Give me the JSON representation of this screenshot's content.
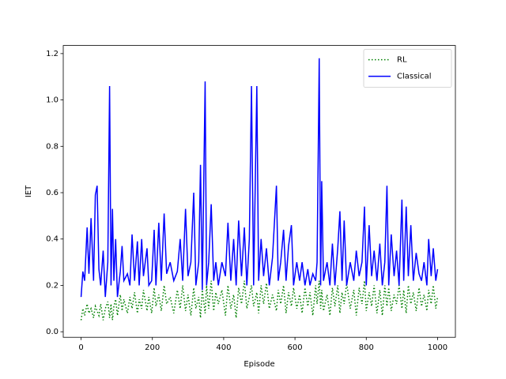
{
  "chart_data": {
    "type": "line",
    "x_label": "Episode",
    "y_label": "IET",
    "x": [
      0,
      5,
      10,
      17,
      22,
      28,
      35,
      40,
      45,
      50,
      55,
      62,
      68,
      75,
      80,
      84,
      88,
      92,
      97,
      102,
      110,
      115,
      120,
      130,
      137,
      143,
      150,
      158,
      163,
      170,
      175,
      185,
      190,
      198,
      205,
      210,
      218,
      225,
      233,
      240,
      250,
      260,
      270,
      278,
      285,
      293,
      300,
      308,
      316,
      322,
      330,
      335,
      340,
      348,
      352,
      358,
      365,
      372,
      378,
      385,
      395,
      405,
      412,
      420,
      428,
      435,
      442,
      450,
      458,
      465,
      472,
      478,
      484,
      493,
      498,
      505,
      512,
      520,
      528,
      537,
      548,
      553,
      560,
      568,
      575,
      582,
      590,
      596,
      605,
      613,
      620,
      628,
      636,
      642,
      650,
      658,
      662,
      668,
      672,
      675,
      680,
      690,
      698,
      705,
      712,
      720,
      726,
      732,
      738,
      745,
      755,
      765,
      772,
      780,
      788,
      795,
      800,
      808,
      815,
      822,
      830,
      838,
      845,
      852,
      858,
      863,
      870,
      878,
      885,
      892,
      900,
      905,
      912,
      918,
      925,
      932,
      940,
      948,
      955,
      962,
      970,
      975,
      982,
      988,
      995,
      1000
    ],
    "series": [
      {
        "name": "RL",
        "color": "#008000",
        "style": "dotted",
        "values": [
          0.05,
          0.1,
          0.07,
          0.12,
          0.08,
          0.1,
          0.06,
          0.11,
          0.09,
          0.07,
          0.12,
          0.05,
          0.1,
          0.13,
          0.06,
          0.12,
          0.05,
          0.11,
          0.14,
          0.07,
          0.16,
          0.09,
          0.14,
          0.08,
          0.15,
          0.1,
          0.17,
          0.08,
          0.14,
          0.1,
          0.18,
          0.09,
          0.15,
          0.08,
          0.19,
          0.11,
          0.16,
          0.09,
          0.2,
          0.12,
          0.15,
          0.08,
          0.18,
          0.1,
          0.2,
          0.09,
          0.16,
          0.07,
          0.19,
          0.1,
          0.15,
          0.06,
          0.18,
          0.08,
          0.2,
          0.1,
          0.22,
          0.09,
          0.17,
          0.12,
          0.18,
          0.07,
          0.2,
          0.1,
          0.16,
          0.06,
          0.19,
          0.12,
          0.22,
          0.1,
          0.15,
          0.2,
          0.11,
          0.17,
          0.08,
          0.2,
          0.12,
          0.21,
          0.1,
          0.16,
          0.09,
          0.18,
          0.12,
          0.2,
          0.08,
          0.17,
          0.11,
          0.19,
          0.1,
          0.16,
          0.08,
          0.19,
          0.11,
          0.17,
          0.07,
          0.2,
          0.12,
          0.22,
          0.1,
          0.18,
          0.09,
          0.16,
          0.07,
          0.19,
          0.11,
          0.2,
          0.08,
          0.17,
          0.12,
          0.21,
          0.1,
          0.18,
          0.07,
          0.19,
          0.12,
          0.22,
          0.09,
          0.17,
          0.11,
          0.2,
          0.08,
          0.18,
          0.07,
          0.2,
          0.11,
          0.19,
          0.09,
          0.16,
          0.12,
          0.2,
          0.1,
          0.18,
          0.08,
          0.2,
          0.12,
          0.17,
          0.09,
          0.19,
          0.11,
          0.16,
          0.09,
          0.18,
          0.12,
          0.2,
          0.1,
          0.15
        ]
      },
      {
        "name": "Classical",
        "color": "#0000ff",
        "style": "solid",
        "values": [
          0.15,
          0.26,
          0.22,
          0.45,
          0.25,
          0.49,
          0.22,
          0.59,
          0.63,
          0.27,
          0.2,
          0.35,
          0.15,
          0.3,
          1.06,
          0.2,
          0.53,
          0.22,
          0.4,
          0.15,
          0.26,
          0.37,
          0.22,
          0.25,
          0.2,
          0.42,
          0.22,
          0.39,
          0.2,
          0.4,
          0.24,
          0.36,
          0.2,
          0.22,
          0.44,
          0.2,
          0.47,
          0.22,
          0.51,
          0.25,
          0.3,
          0.22,
          0.26,
          0.4,
          0.22,
          0.53,
          0.24,
          0.3,
          0.6,
          0.2,
          0.3,
          0.72,
          0.18,
          1.08,
          0.2,
          0.3,
          0.55,
          0.22,
          0.3,
          0.2,
          0.3,
          0.24,
          0.47,
          0.22,
          0.4,
          0.2,
          0.48,
          0.24,
          0.45,
          0.2,
          0.4,
          1.06,
          0.2,
          1.06,
          0.22,
          0.4,
          0.24,
          0.36,
          0.2,
          0.32,
          0.63,
          0.22,
          0.3,
          0.44,
          0.22,
          0.37,
          0.46,
          0.2,
          0.3,
          0.22,
          0.3,
          0.2,
          0.27,
          0.2,
          0.25,
          0.22,
          0.3,
          1.18,
          0.2,
          0.65,
          0.22,
          0.3,
          0.2,
          0.38,
          0.2,
          0.36,
          0.52,
          0.22,
          0.48,
          0.2,
          0.3,
          0.22,
          0.35,
          0.24,
          0.3,
          0.54,
          0.2,
          0.46,
          0.24,
          0.35,
          0.22,
          0.38,
          0.2,
          0.3,
          0.63,
          0.2,
          0.42,
          0.24,
          0.35,
          0.2,
          0.57,
          0.22,
          0.54,
          0.24,
          0.46,
          0.22,
          0.34,
          0.25,
          0.22,
          0.3,
          0.2,
          0.4,
          0.24,
          0.36,
          0.22,
          0.27
        ]
      }
    ],
    "xlim": [
      -50,
      1050
    ],
    "xticks": [
      0,
      200,
      400,
      600,
      800,
      1000
    ],
    "ylim": [
      -0.024,
      1.235
    ],
    "yticks": [
      {
        "value": 0,
        "label": "0.0"
      },
      0.2,
      0.4,
      0.6,
      0.8,
      {
        "value": 1,
        "label": "1.0"
      },
      1.2
    ],
    "legend": "upper right"
  }
}
